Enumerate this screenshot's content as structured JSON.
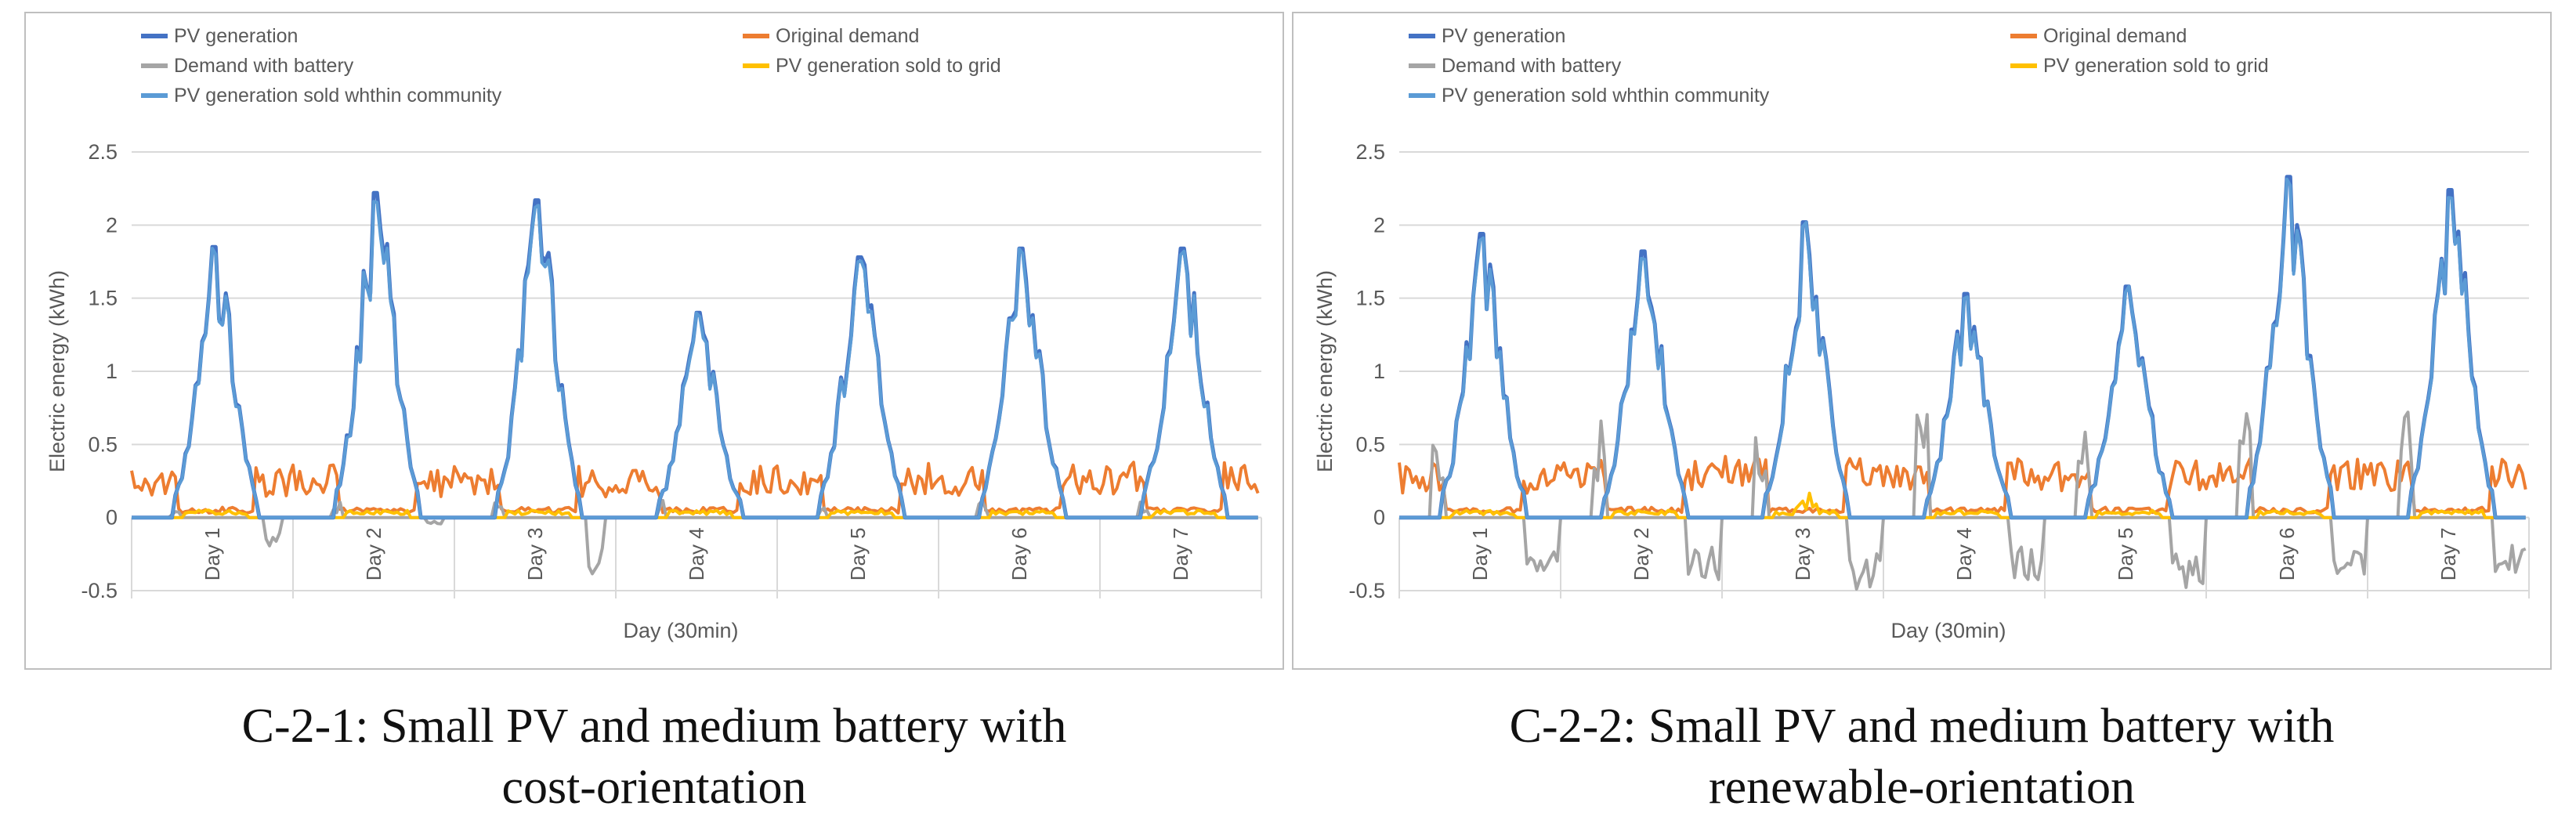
{
  "colors": {
    "pv_generation": "#4472C4",
    "original_demand": "#ED7D31",
    "demand_with_battery": "#A5A5A5",
    "sold_to_grid": "#FFC000",
    "sold_within_community": "#5B9BD5",
    "grid": "#d9d9d9",
    "frame": "#bfbfbf",
    "text": "#595959"
  },
  "captions": [
    {
      "line1": "C-2-1: Small PV and medium battery with",
      "line2": "cost-orientation"
    },
    {
      "line1": "C-2-2: Small PV and medium battery with",
      "line2": "renewable-orientation"
    }
  ],
  "chart_data": [
    {
      "type": "line",
      "ylabel": "Electric energy (kWh)",
      "xlabel": "Day (30min)",
      "ylim": [
        -0.5,
        2.5
      ],
      "yticks": [
        "-0.5",
        "0",
        "0.5",
        "1",
        "1.5",
        "2",
        "2.5"
      ],
      "day_labels": [
        "Day 1",
        "Day 2",
        "Day 3",
        "Day 4",
        "Day 5",
        "Day 6",
        "Day 7"
      ],
      "grid": true,
      "legend_position": "top",
      "series": [
        {
          "key": "pv_generation",
          "name": "PV generation"
        },
        {
          "key": "original_demand",
          "name": "Original demand"
        },
        {
          "key": "demand_with_battery",
          "name": "Demand with battery"
        },
        {
          "key": "sold_to_grid",
          "name": "PV generation sold to grid"
        },
        {
          "key": "sold_within_community",
          "name": "PV generation sold whthin community"
        }
      ],
      "daily_pv_peak": [
        1.85,
        2.22,
        2.17,
        1.4,
        1.78,
        1.84,
        1.84
      ],
      "daily_demand_mean": [
        0.25,
        0.25,
        0.24,
        0.25,
        0.26,
        0.25,
        0.27
      ],
      "daily_battery_min": [
        -0.2,
        -0.05,
        -0.4,
        0,
        0,
        0,
        0
      ]
    },
    {
      "type": "line",
      "ylabel": "Electric energy (kWh)",
      "xlabel": "Day (30min)",
      "ylim": [
        -0.5,
        2.5
      ],
      "yticks": [
        "-0.5",
        "0",
        "0.5",
        "1",
        "1.5",
        "2",
        "2.5"
      ],
      "day_labels": [
        "Day 1",
        "Day 2",
        "Day 3",
        "Day 4",
        "Day 5",
        "Day 6",
        "Day 7"
      ],
      "grid": true,
      "legend_position": "top",
      "series": [
        {
          "key": "pv_generation",
          "name": "PV generation"
        },
        {
          "key": "original_demand",
          "name": "Original demand"
        },
        {
          "key": "demand_with_battery",
          "name": "Demand with battery"
        },
        {
          "key": "sold_to_grid",
          "name": "PV generation sold to grid"
        },
        {
          "key": "sold_within_community",
          "name": "PV generation sold whthin community"
        }
      ],
      "daily_pv_peak": [
        1.94,
        1.82,
        2.02,
        1.53,
        1.58,
        2.33,
        2.24
      ],
      "daily_demand_mean": [
        0.27,
        0.3,
        0.31,
        0.3,
        0.29,
        0.3,
        0.29
      ],
      "daily_battery_min": [
        -0.4,
        -0.45,
        -0.5,
        -0.45,
        -0.5,
        -0.42,
        -0.38
      ]
    }
  ]
}
